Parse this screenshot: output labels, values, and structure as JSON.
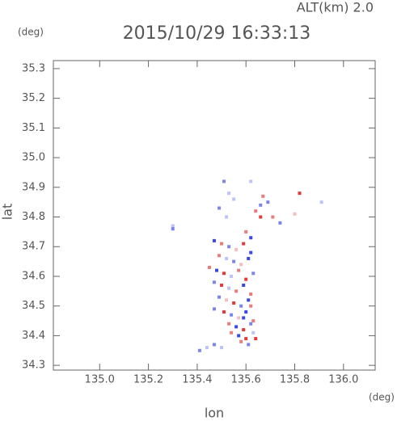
{
  "chart_data": {
    "type": "scatter",
    "title": "2015/10/29 16:33:13",
    "subtitle": "ALT(km) 2.0",
    "x_label": "lon",
    "y_label": "lat",
    "x_unit": "(deg)",
    "y_unit": "(deg)",
    "xlim": [
      134.81,
      136.13
    ],
    "ylim": [
      34.284,
      35.327
    ],
    "xticks": [
      {
        "value": 135,
        "label": "135.0"
      },
      135.2,
      135.4,
      135.6,
      135.8,
      {
        "value": 136,
        "label": "136.0"
      }
    ],
    "yticks": [
      34.3,
      34.4,
      34.5,
      34.6,
      34.7,
      34.8,
      34.9,
      {
        "value": 35,
        "label": "35.0"
      },
      35.1,
      35.2,
      35.3
    ],
    "positive_color": "#e03a3a",
    "negative_color": "#3a48e6",
    "x": [
      135.51,
      135.53,
      135.62,
      135.67,
      135.69,
      135.82,
      135.91,
      135.3,
      135.49,
      135.52,
      135.66,
      135.64,
      135.6,
      135.62,
      135.55,
      135.71,
      135.74,
      135.8,
      135.47,
      135.5,
      135.53,
      135.56,
      135.59,
      135.62,
      135.49,
      135.52,
      135.55,
      135.58,
      135.61,
      135.45,
      135.48,
      135.51,
      135.54,
      135.57,
      135.6,
      135.63,
      135.47,
      135.5,
      135.53,
      135.56,
      135.59,
      135.62,
      135.49,
      135.52,
      135.55,
      135.58,
      135.61,
      135.51,
      135.54,
      135.57,
      135.6,
      135.63,
      135.47,
      135.53,
      135.56,
      135.59,
      135.62,
      135.54,
      135.57,
      135.6,
      135.63,
      135.58,
      135.61,
      135.64,
      135.59,
      135.62,
      135.41,
      135.44,
      135.47,
      135.5,
      135.3,
      135.66
    ],
    "y": [
      34.92,
      34.88,
      34.92,
      34.87,
      34.85,
      34.88,
      34.85,
      34.76,
      34.83,
      34.8,
      34.8,
      34.82,
      34.75,
      34.73,
      34.86,
      34.8,
      34.78,
      34.81,
      34.72,
      34.71,
      34.7,
      34.69,
      34.71,
      34.68,
      34.67,
      34.66,
      34.65,
      34.64,
      34.66,
      34.63,
      34.62,
      34.61,
      34.6,
      34.62,
      34.59,
      34.61,
      34.58,
      34.57,
      34.56,
      34.55,
      34.57,
      34.54,
      34.53,
      34.52,
      34.51,
      34.5,
      34.52,
      34.48,
      34.47,
      34.46,
      34.48,
      34.45,
      34.49,
      34.44,
      34.43,
      34.42,
      34.44,
      34.41,
      34.4,
      34.39,
      34.41,
      34.38,
      34.37,
      34.39,
      34.46,
      34.5,
      34.35,
      34.36,
      34.37,
      34.36,
      34.77,
      34.84
    ],
    "values": [
      -2,
      -1,
      -1,
      2,
      -2,
      3,
      -1,
      -2,
      -2,
      -1,
      3,
      2,
      2,
      -3,
      -1,
      2,
      -2,
      1,
      -3,
      2,
      -2,
      1,
      3,
      -3,
      2,
      -1,
      -2,
      1,
      -3,
      2,
      -3,
      3,
      -1,
      2,
      3,
      -2,
      -2,
      3,
      -1,
      2,
      -3,
      2,
      -2,
      1,
      3,
      -2,
      -3,
      3,
      -2,
      1,
      -3,
      2,
      -2,
      2,
      -3,
      3,
      -2,
      2,
      -3,
      3,
      -1,
      2,
      -2,
      3,
      -3,
      2,
      -2,
      -1,
      -2,
      -1,
      -1,
      -2
    ]
  }
}
